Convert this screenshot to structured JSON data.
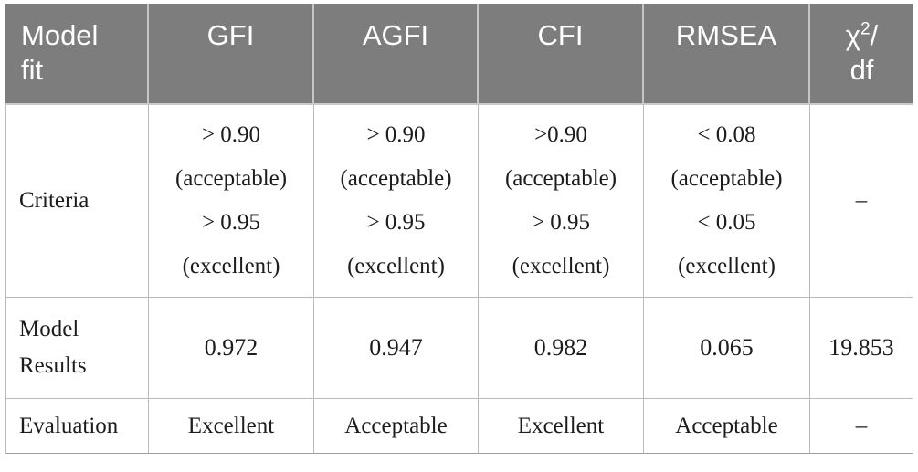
{
  "colors": {
    "header_background": "#7d7d7d",
    "header_text": "#ffffff",
    "header_divider": "#c6c6c6",
    "grid_line": "#b9b9b9",
    "body_text": "#1c1c1c",
    "page_background": "#ffffff"
  },
  "table": {
    "header": {
      "model_fit": {
        "line1": "Model",
        "line2": "fit"
      },
      "cols": [
        "GFI",
        "AGFI",
        "CFI",
        "RMSEA"
      ],
      "chi": {
        "base": "χ",
        "sup": "2",
        "slash": "/",
        "line2": "df"
      }
    },
    "rows": {
      "criteria": {
        "label": "Criteria",
        "gfi": [
          "> 0.90",
          "(acceptable)",
          "> 0.95",
          "(excellent)"
        ],
        "agfi": [
          "> 0.90",
          "(acceptable)",
          "> 0.95",
          "(excellent)"
        ],
        "cfi": [
          ">0.90",
          "(acceptable)",
          "> 0.95",
          "(excellent)"
        ],
        "rmsea": [
          "< 0.08",
          "(acceptable)",
          "< 0.05",
          "(excellent)"
        ],
        "chi2_df": "–"
      },
      "model_results": {
        "label_line1": "Model",
        "label_line2": "Results",
        "gfi": "0.972",
        "agfi": "0.947",
        "cfi": "0.982",
        "rmsea": "0.065",
        "chi2_df": "19.853"
      },
      "evaluation": {
        "label": "Evaluation",
        "gfi": "Excellent",
        "agfi": "Acceptable",
        "cfi": "Excellent",
        "rmsea": "Acceptable",
        "chi2_df": "–"
      }
    }
  }
}
